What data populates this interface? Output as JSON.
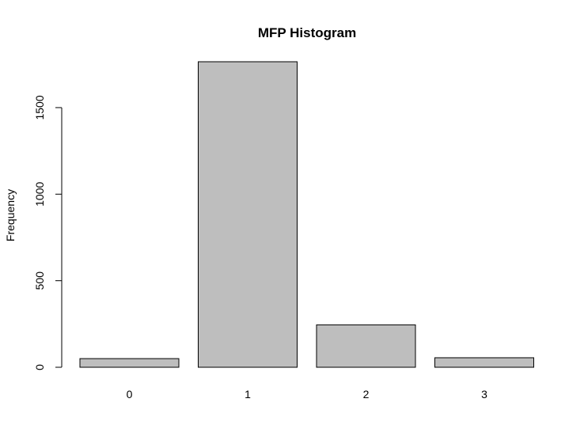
{
  "chart_data": {
    "type": "bar",
    "title": "MFP Histogram",
    "xlabel": "",
    "ylabel": "Frequency",
    "categories": [
      "0",
      "1",
      "2",
      "3"
    ],
    "values": [
      50,
      1765,
      245,
      55
    ],
    "yticks": [
      0,
      500,
      1000,
      1500
    ],
    "ylim": [
      0,
      1765
    ],
    "grid": false,
    "legend": "none",
    "colors": {
      "bar_fill": "#bebebe",
      "bar_stroke": "#000000",
      "axis": "#000000"
    }
  }
}
